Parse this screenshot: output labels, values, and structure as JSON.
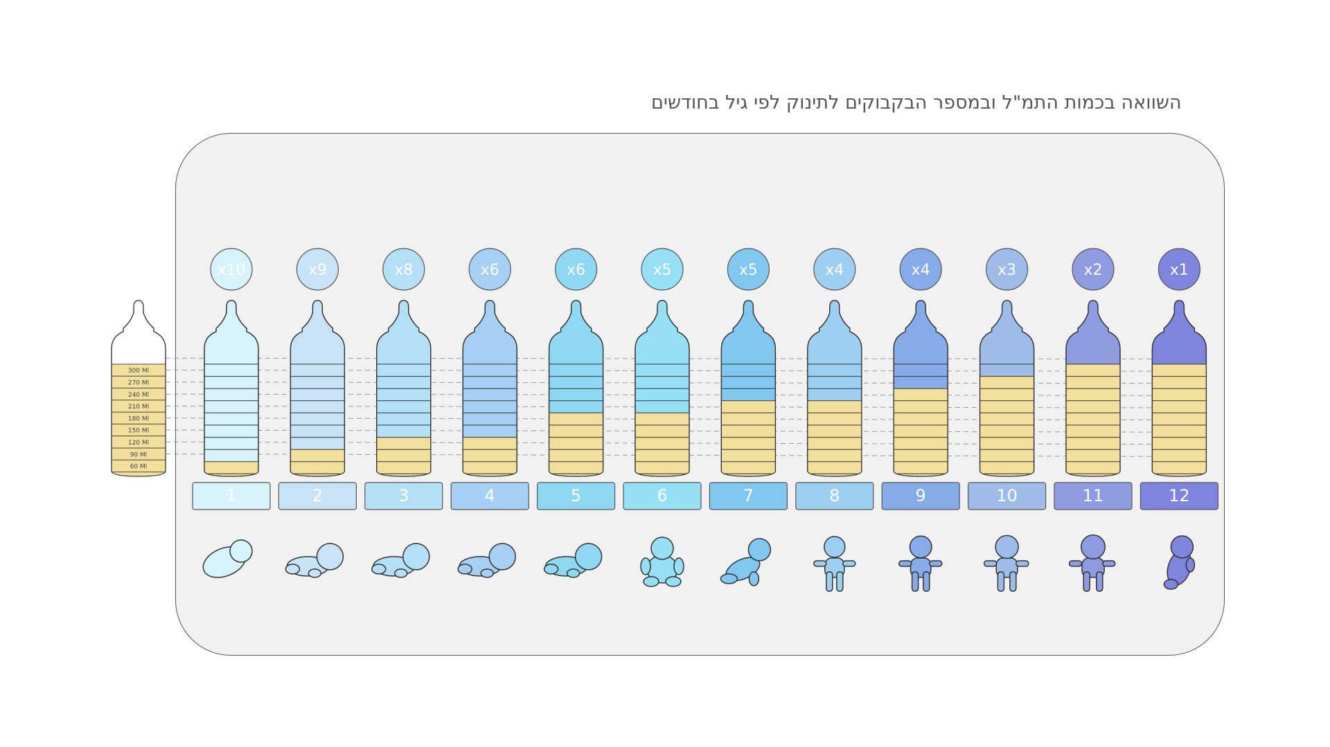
{
  "title": "השוואה בכמות התמ\"ל ובמספר הבקבוקים לתינוק לפי גיל בחודשים",
  "chart_data": {
    "type": "bar",
    "title": "השוואה בכמות התמ\"ל ובמספר הבקבוקים לתינוק לפי גיל בחודשים",
    "reference_scale": [
      "300 Ml",
      "270 Ml",
      "240 Ml",
      "210 Ml",
      "180 Ml",
      "150 Ml",
      "120 Ml",
      "90 Ml",
      "60 Ml"
    ],
    "reference_values_ml": [
      300,
      270,
      240,
      210,
      180,
      150,
      120,
      90,
      60
    ],
    "ylim_ml": [
      60,
      300
    ],
    "months": [
      {
        "label": "1",
        "count_label": "x10",
        "ml": 60,
        "color": "#d6f3fb"
      },
      {
        "label": "2",
        "count_label": "x9",
        "ml": 90,
        "color": "#c8e3f6"
      },
      {
        "label": "3",
        "count_label": "x8",
        "ml": 120,
        "color": "#b3e0f6"
      },
      {
        "label": "4",
        "count_label": "x6",
        "ml": 120,
        "color": "#a6d0f3"
      },
      {
        "label": "5",
        "count_label": "x6",
        "ml": 180,
        "color": "#8ed9f1"
      },
      {
        "label": "6",
        "count_label": "x5",
        "ml": 180,
        "color": "#95e0f4"
      },
      {
        "label": "7",
        "count_label": "x5",
        "ml": 210,
        "color": "#81c8f0"
      },
      {
        "label": "8",
        "count_label": "x4",
        "ml": 210,
        "color": "#9dcff1"
      },
      {
        "label": "9",
        "count_label": "x4",
        "ml": 240,
        "color": "#86abe9"
      },
      {
        "label": "10",
        "count_label": "x3",
        "ml": 270,
        "color": "#9fbce9"
      },
      {
        "label": "11",
        "count_label": "x2",
        "ml": 300,
        "color": "#8f9be0"
      },
      {
        "label": "12",
        "count_label": "x1",
        "ml": 300,
        "color": "#7f85dc"
      }
    ],
    "formula_color": "#f3df9c"
  }
}
